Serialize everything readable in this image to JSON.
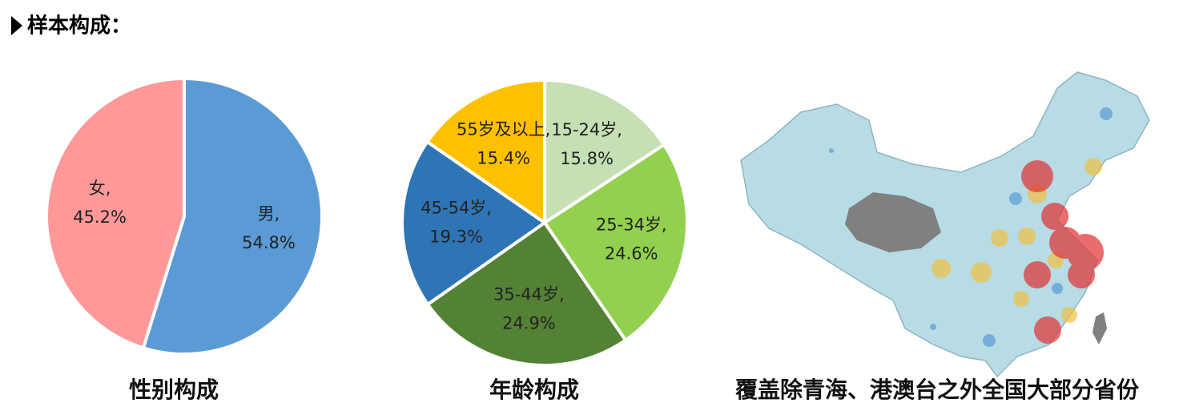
{
  "header": {
    "title": "样本构成："
  },
  "chart_data": [
    {
      "type": "pie",
      "title": "性别构成",
      "categories": [
        "男,",
        "女,"
      ],
      "values": [
        54.8,
        45.2
      ],
      "value_labels": [
        "54.8%",
        "45.2%"
      ],
      "colors": [
        "#5b9bd5",
        "#ff9999"
      ]
    },
    {
      "type": "pie",
      "title": "年龄构成",
      "categories": [
        "15-24岁,",
        "25-34岁,",
        "35-44岁,",
        "45-54岁,",
        "55岁及以上,"
      ],
      "values": [
        15.8,
        24.6,
        24.9,
        19.3,
        15.4
      ],
      "value_labels": [
        "15.8%",
        "24.6%",
        "24.9%",
        "19.3%",
        "15.4%"
      ],
      "colors": [
        "#c5e0b4",
        "#92d050",
        "#548235",
        "#2e75b6",
        "#ffc000"
      ]
    }
  ],
  "map": {
    "caption": "覆盖除青海、港澳台之外全国大部分省份"
  }
}
